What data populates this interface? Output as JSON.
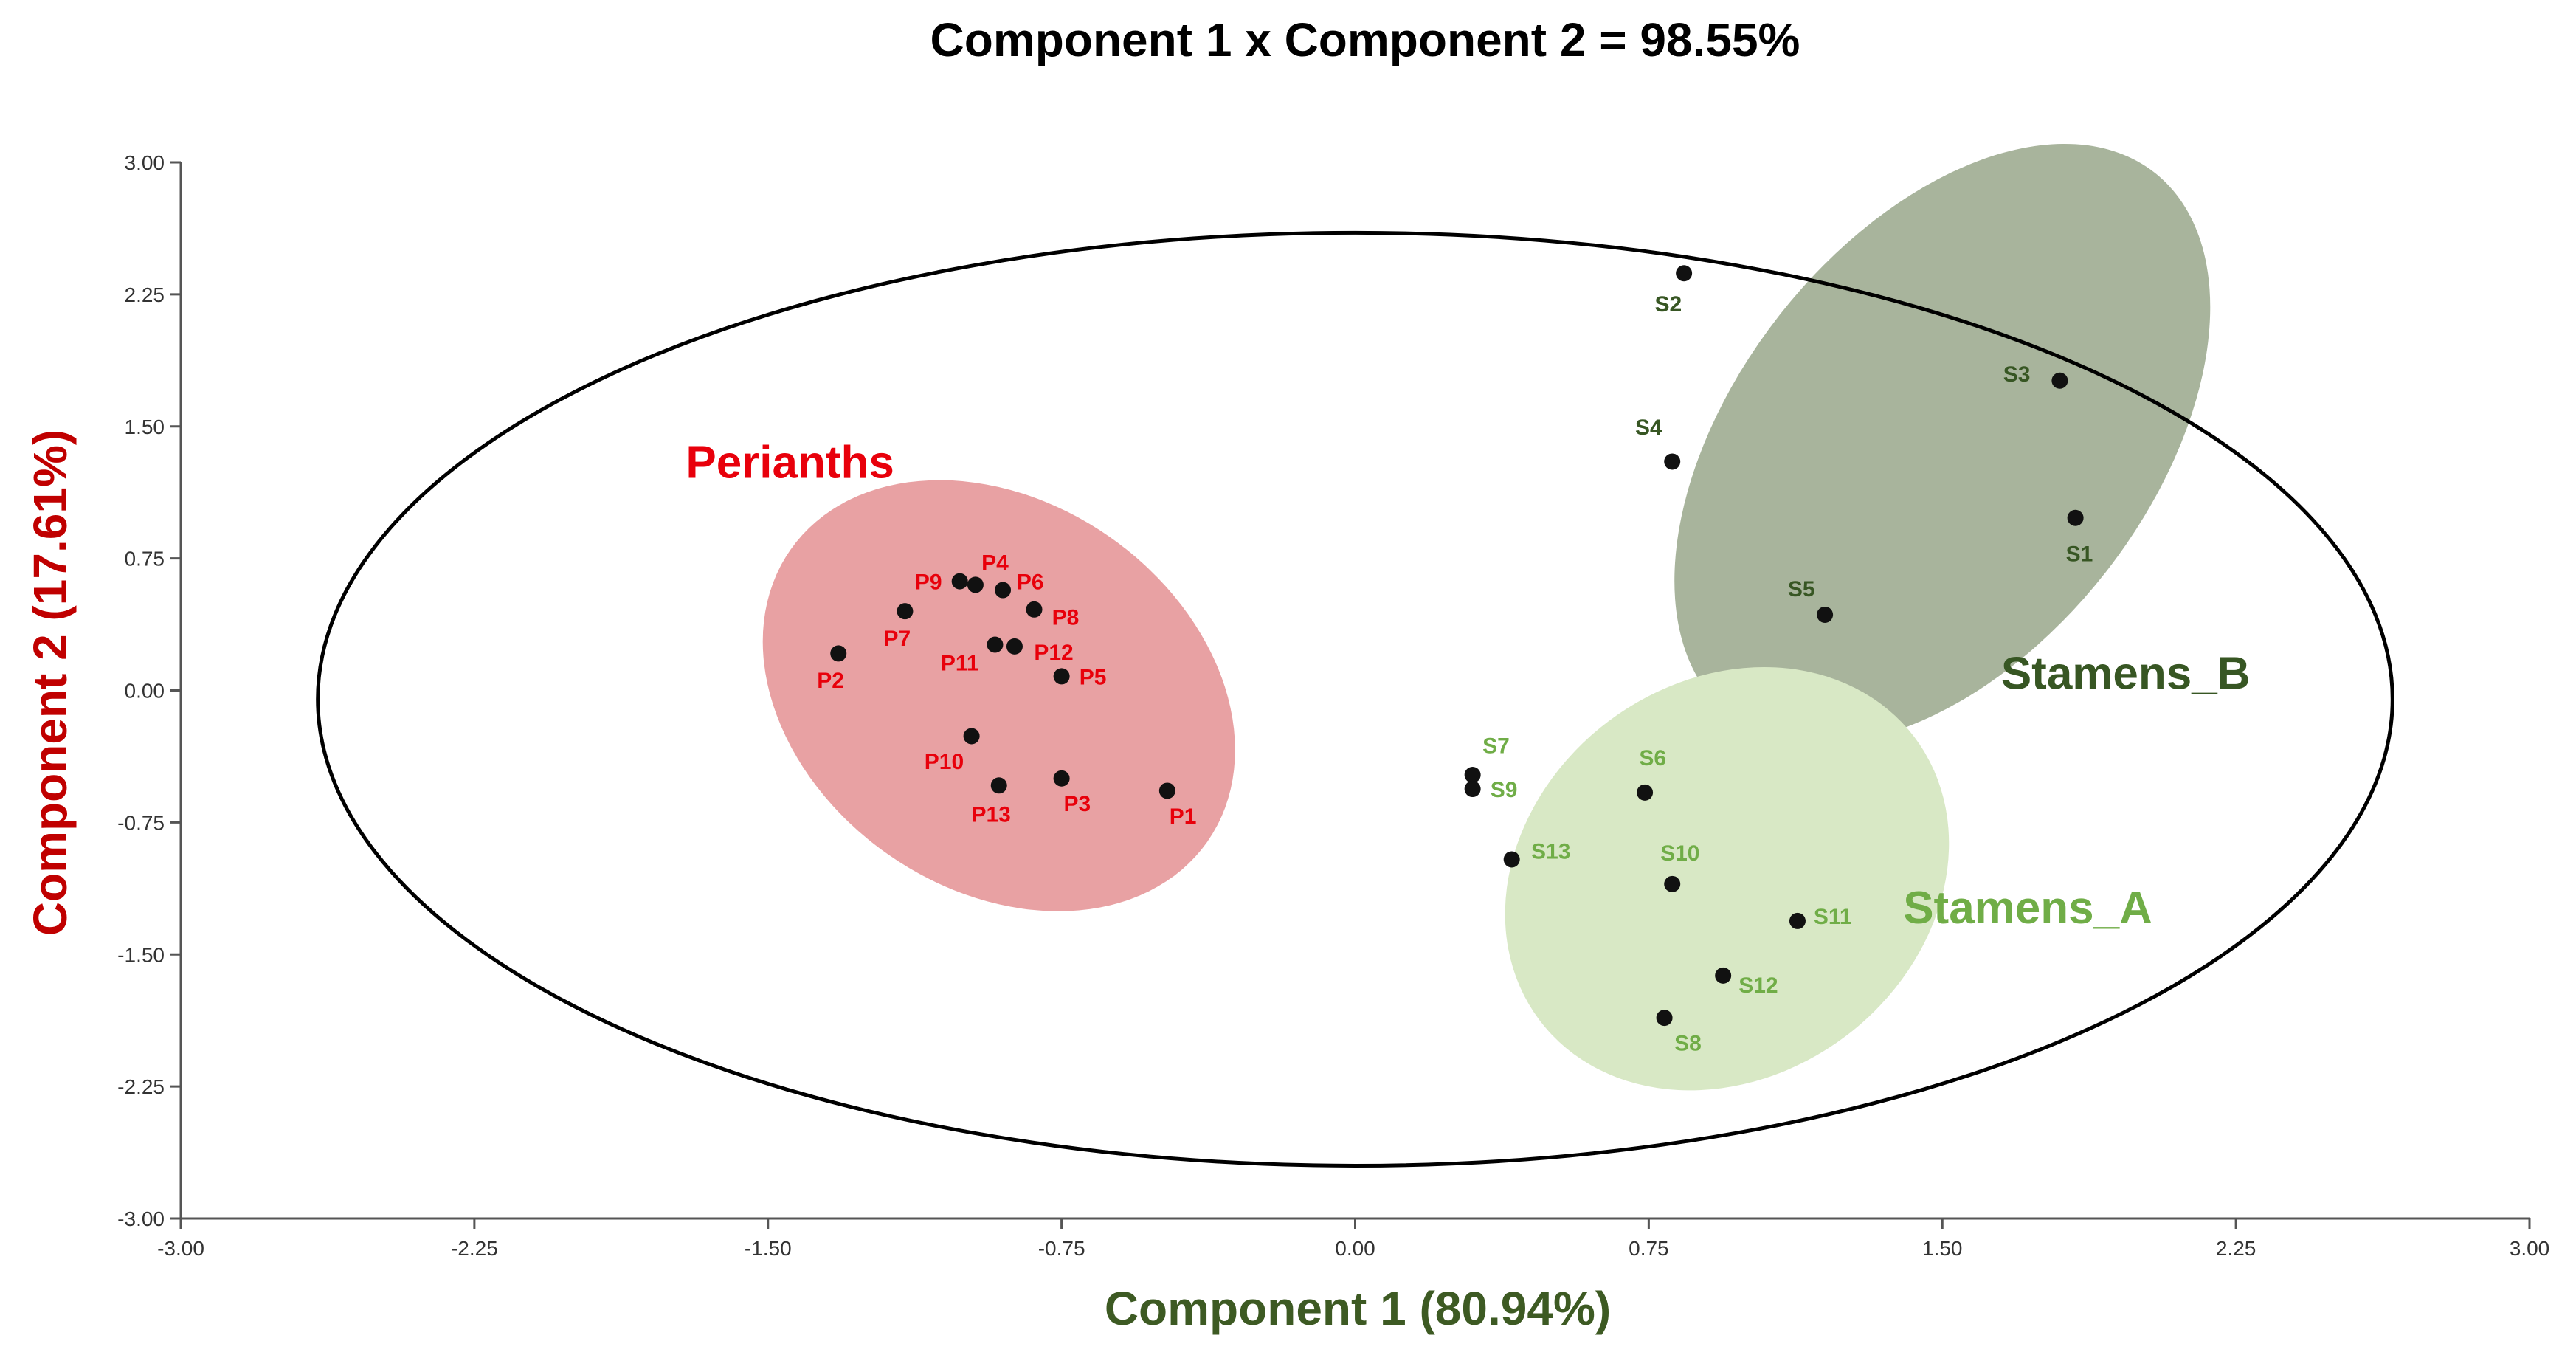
{
  "chart_data": {
    "type": "scatter",
    "title": "Component 1 x Component 2 = 98.55%",
    "xlabel": "Component 1 (80.94%)",
    "ylabel": "Component 2 (17.61%)",
    "xlim": [
      -3.0,
      3.0
    ],
    "ylim": [
      -3.0,
      3.0
    ],
    "xticks": [
      "-3.00",
      "-2.25",
      "-1.50",
      "-0.75",
      "0.00",
      "0.75",
      "1.50",
      "2.25",
      "3.00"
    ],
    "yticks": [
      "-3.00",
      "-2.25",
      "-1.50",
      "-0.75",
      "0.00",
      "0.75",
      "1.50",
      "2.25",
      "3.00"
    ],
    "grid": false,
    "confidence_ellipse": {
      "center": [
        0.0,
        -0.05
      ],
      "rx": 2.65,
      "ry": 2.65
    },
    "groups": [
      {
        "name": "Perianths",
        "color": "#e8000b",
        "fill": "#e8a1a3",
        "label_anchor": [
          -1.71,
          1.3
        ],
        "region": {
          "center": [
            -0.91,
            -0.03
          ],
          "rx": 0.65,
          "ry": 1.1,
          "angle": 35
        }
      },
      {
        "name": "Stamens_B",
        "color": "#375623",
        "fill": "#a8b49c",
        "label_anchor": [
          1.65,
          0.1
        ],
        "region": {
          "center": [
            1.5,
            1.4
          ],
          "rx": 0.88,
          "ry": 1.18,
          "angle": -52
        }
      },
      {
        "name": "Stamens_A",
        "color": "#70ad47",
        "fill": "#d8e8c5",
        "label_anchor": [
          1.4,
          -1.23
        ],
        "region": {
          "center": [
            0.95,
            -1.07
          ],
          "rx": 0.6,
          "ry": 1.12,
          "angle": -37
        }
      }
    ],
    "points": [
      {
        "label": "P1",
        "group": "Perianths",
        "x": -0.48,
        "y": -0.57,
        "lx": 0.04,
        "ly": -0.14
      },
      {
        "label": "P2",
        "group": "Perianths",
        "x": -1.32,
        "y": 0.21,
        "lx": -0.02,
        "ly": -0.15
      },
      {
        "label": "P3",
        "group": "Perianths",
        "x": -0.75,
        "y": -0.5,
        "lx": 0.04,
        "ly": -0.14
      },
      {
        "label": "P4",
        "group": "Perianths",
        "x": -0.97,
        "y": 0.6,
        "lx": 0.05,
        "ly": 0.13
      },
      {
        "label": "P5",
        "group": "Perianths",
        "x": -0.75,
        "y": 0.08,
        "lx": 0.08,
        "ly": 0.0
      },
      {
        "label": "P6",
        "group": "Perianths",
        "x": -0.9,
        "y": 0.57,
        "lx": 0.07,
        "ly": 0.05
      },
      {
        "label": "P7",
        "group": "Perianths",
        "x": -1.15,
        "y": 0.45,
        "lx": -0.02,
        "ly": -0.15
      },
      {
        "label": "P8",
        "group": "Perianths",
        "x": -0.82,
        "y": 0.46,
        "lx": 0.08,
        "ly": -0.04
      },
      {
        "label": "P9",
        "group": "Perianths",
        "x": -1.01,
        "y": 0.62,
        "lx": -0.08,
        "ly": 0.0
      },
      {
        "label": "P10",
        "group": "Perianths",
        "x": -0.98,
        "y": -0.26,
        "lx": -0.07,
        "ly": -0.14
      },
      {
        "label": "P11",
        "group": "Perianths",
        "x": -0.92,
        "y": 0.26,
        "lx": -0.09,
        "ly": -0.1
      },
      {
        "label": "P12",
        "group": "Perianths",
        "x": -0.87,
        "y": 0.25,
        "lx": 0.1,
        "ly": -0.03
      },
      {
        "label": "P13",
        "group": "Perianths",
        "x": -0.91,
        "y": -0.54,
        "lx": -0.02,
        "ly": -0.16
      },
      {
        "label": "S1",
        "group": "Stamens_B",
        "x": 1.84,
        "y": 0.98,
        "lx": 0.01,
        "ly": -0.2
      },
      {
        "label": "S2",
        "group": "Stamens_B",
        "x": 0.84,
        "y": 2.37,
        "lx": -0.04,
        "ly": -0.17
      },
      {
        "label": "S3",
        "group": "Stamens_B",
        "x": 1.8,
        "y": 1.76,
        "lx": -0.11,
        "ly": 0.04
      },
      {
        "label": "S4",
        "group": "Stamens_B",
        "x": 0.81,
        "y": 1.3,
        "lx": -0.06,
        "ly": 0.2
      },
      {
        "label": "S5",
        "group": "Stamens_B",
        "x": 1.2,
        "y": 0.43,
        "lx": -0.06,
        "ly": 0.15
      },
      {
        "label": "S6",
        "group": "Stamens_A",
        "x": 0.74,
        "y": -0.58,
        "lx": 0.02,
        "ly": 0.2
      },
      {
        "label": "S7",
        "group": "Stamens_A",
        "x": 0.3,
        "y": -0.48,
        "lx": 0.06,
        "ly": 0.17
      },
      {
        "label": "S8",
        "group": "Stamens_A",
        "x": 0.79,
        "y": -1.86,
        "lx": 0.06,
        "ly": -0.14
      },
      {
        "label": "S9",
        "group": "Stamens_A",
        "x": 0.3,
        "y": -0.56,
        "lx": 0.08,
        "ly": 0.0
      },
      {
        "label": "S10",
        "group": "Stamens_A",
        "x": 0.81,
        "y": -1.1,
        "lx": 0.02,
        "ly": 0.18
      },
      {
        "label": "S11",
        "group": "Stamens_A",
        "x": 1.13,
        "y": -1.31,
        "lx": 0.09,
        "ly": 0.03
      },
      {
        "label": "S12",
        "group": "Stamens_A",
        "x": 0.94,
        "y": -1.62,
        "lx": 0.09,
        "ly": -0.05
      },
      {
        "label": "S13",
        "group": "Stamens_A",
        "x": 0.4,
        "y": -0.96,
        "lx": 0.1,
        "ly": 0.05
      }
    ]
  },
  "colors": {
    "point": "#111111",
    "axis": "#555555",
    "xlabel": "#3d5a23",
    "ylabel": "#c00000"
  }
}
